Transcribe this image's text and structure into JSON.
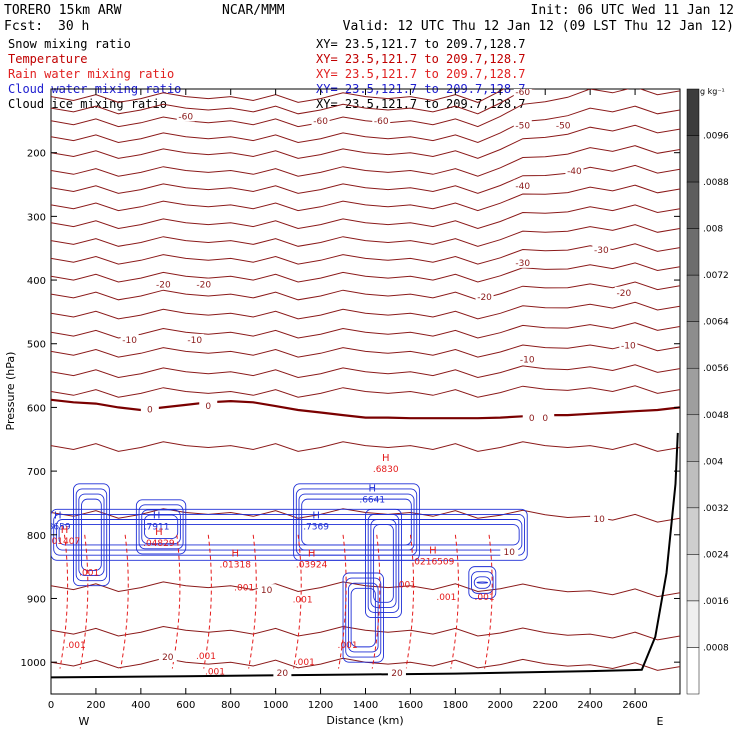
{
  "header": {
    "model": "TORERO  15km ARW",
    "center": "NCAR/MMM",
    "init": "Init: 06 UTC Wed 11 Jan 12",
    "fcst_label": "Fcst:",
    "fcst_value": "30 h",
    "valid": "Valid: 12 UTC Thu 12 Jan 12 (09 LST Thu 12 Jan 12)"
  },
  "fields": [
    {
      "name": "Snow mixing ratio",
      "xy": "XY=  23.5,121.7 to 209.7,128.7",
      "color": "#000000"
    },
    {
      "name": "Temperature",
      "xy": "XY=  23.5,121.7 to 209.7,128.7",
      "color": "#c00000"
    },
    {
      "name": "Rain water mixing ratio",
      "xy": "XY=  23.5,121.7 to 209.7,128.7",
      "color": "#e02020"
    },
    {
      "name": "Cloud water mixing ratio",
      "xy": "XY=  23.5,121.7 to 209.7,128.7",
      "color": "#2020d0"
    },
    {
      "name": "Cloud ice mixing ratio",
      "xy": "XY=  23.5,121.7 to 209.7,128.7",
      "color": "#000000"
    }
  ],
  "colorbar": {
    "unit": "g kg⁻¹",
    "labels": [
      ".0096",
      ".0088",
      ".008",
      ".0072",
      ".0064",
      ".0056",
      ".0048",
      ".004",
      ".0032",
      ".0024",
      ".0016",
      ".0008"
    ]
  },
  "colors": {
    "temperature": "#8b1a1a",
    "zero_isotherm": "#7a0000",
    "cloud_water": "#1f2fd6",
    "rain_water": "#e41a1a",
    "terrain": "#000000",
    "frame": "#000000"
  },
  "chart_data": {
    "type": "contour",
    "title": "",
    "xlabel": "Distance (km)",
    "ylabel": "Pressure (hPa)",
    "xlim": [
      0,
      2800
    ],
    "ylim": [
      1050,
      100
    ],
    "x_ticks": [
      0,
      200,
      400,
      600,
      800,
      1000,
      1200,
      1400,
      1600,
      1800,
      2000,
      2200,
      2400,
      2600
    ],
    "y_ticks": [
      200,
      300,
      400,
      500,
      600,
      700,
      800,
      900,
      1000
    ],
    "x_ends": {
      "left": "W",
      "right": "E"
    },
    "temperature_contours": [
      {
        "label": "-60",
        "x": 600,
        "p": 143
      },
      {
        "label": "-60",
        "x": 1200,
        "p": 150
      },
      {
        "label": "-60",
        "x": 1470,
        "p": 150
      },
      {
        "label": "-60",
        "x": 2100,
        "p": 105
      },
      {
        "label": "-50",
        "x": 2100,
        "p": 157
      },
      {
        "label": "-50",
        "x": 2280,
        "p": 157
      },
      {
        "label": "-40",
        "x": 2100,
        "p": 252
      },
      {
        "label": "-40",
        "x": 2330,
        "p": 229
      },
      {
        "label": "-30",
        "x": 2100,
        "p": 373
      },
      {
        "label": "-30",
        "x": 2450,
        "p": 353
      },
      {
        "label": "-20",
        "x": 500,
        "p": 407
      },
      {
        "label": "-20",
        "x": 680,
        "p": 407
      },
      {
        "label": "-20",
        "x": 1930,
        "p": 427
      },
      {
        "label": "-20",
        "x": 2550,
        "p": 420
      },
      {
        "label": "-10",
        "x": 350,
        "p": 494
      },
      {
        "label": "-10",
        "x": 640,
        "p": 494
      },
      {
        "label": "-10",
        "x": 2120,
        "p": 525
      },
      {
        "label": "-10",
        "x": 2570,
        "p": 503
      },
      {
        "label": "0",
        "x": 440,
        "p": 603
      },
      {
        "label": "0",
        "x": 700,
        "p": 598
      },
      {
        "label": "0",
        "x": 2140,
        "p": 617
      },
      {
        "label": "0",
        "x": 2200,
        "p": 617
      },
      {
        "label": "10",
        "x": 960,
        "p": 887
      },
      {
        "label": "10",
        "x": 2040,
        "p": 827
      },
      {
        "label": "10",
        "x": 2440,
        "p": 775
      },
      {
        "label": "20",
        "x": 520,
        "p": 992
      },
      {
        "label": "20",
        "x": 1030,
        "p": 1017
      },
      {
        "label": "20",
        "x": 1540,
        "p": 1017
      }
    ],
    "rain_water_labels": [
      {
        "label": ".001",
        "x": 170,
        "p": 859
      },
      {
        "label": ".001",
        "x": 110,
        "p": 973
      },
      {
        "label": ".001",
        "x": 860,
        "p": 883
      },
      {
        "label": ".001",
        "x": 1120,
        "p": 902
      },
      {
        "label": ".001",
        "x": 690,
        "p": 990
      },
      {
        "label": ".001",
        "x": 730,
        "p": 1015
      },
      {
        "label": ".001",
        "x": 1130,
        "p": 1000
      },
      {
        "label": ".001",
        "x": 1320,
        "p": 973
      },
      {
        "label": ".001",
        "x": 1580,
        "p": 878
      },
      {
        "label": ".001",
        "x": 1760,
        "p": 898
      },
      {
        "label": ".001",
        "x": 1930,
        "p": 898
      }
    ],
    "maxima": [
      {
        "symbol": "H",
        "value": ".8659",
        "x": 30,
        "p": 790,
        "series": "cloud_water"
      },
      {
        "symbol": "H",
        "value": ".7911",
        "x": 470,
        "p": 790,
        "series": "cloud_water"
      },
      {
        "symbol": "H",
        "value": ".7369",
        "x": 1180,
        "p": 790,
        "series": "cloud_water"
      },
      {
        "symbol": "H",
        "value": ".6641",
        "x": 1430,
        "p": 748,
        "series": "cloud_water"
      },
      {
        "symbol": "H",
        "value": ".01407",
        "x": 60,
        "p": 813,
        "series": "rain_water"
      },
      {
        "symbol": "H",
        "value": ".04829",
        "x": 480,
        "p": 816,
        "series": "rain_water"
      },
      {
        "symbol": "H",
        "value": ".01318",
        "x": 820,
        "p": 850,
        "series": "rain_water"
      },
      {
        "symbol": "H",
        "value": ".03924",
        "x": 1160,
        "p": 850,
        "series": "rain_water"
      },
      {
        "symbol": "H",
        "value": ".0216509",
        "x": 1700,
        "p": 845,
        "series": "rain_water"
      },
      {
        "symbol": "H",
        "value": ".6830",
        "x": 1490,
        "p": 700,
        "series": "rain_water"
      }
    ],
    "terrain": {
      "x": [
        0,
        600,
        1200,
        1800,
        2400,
        2630,
        2690,
        2740,
        2780,
        2790
      ],
      "p": [
        1024,
        1022,
        1020,
        1018,
        1014,
        1012,
        960,
        860,
        720,
        640
      ]
    }
  }
}
